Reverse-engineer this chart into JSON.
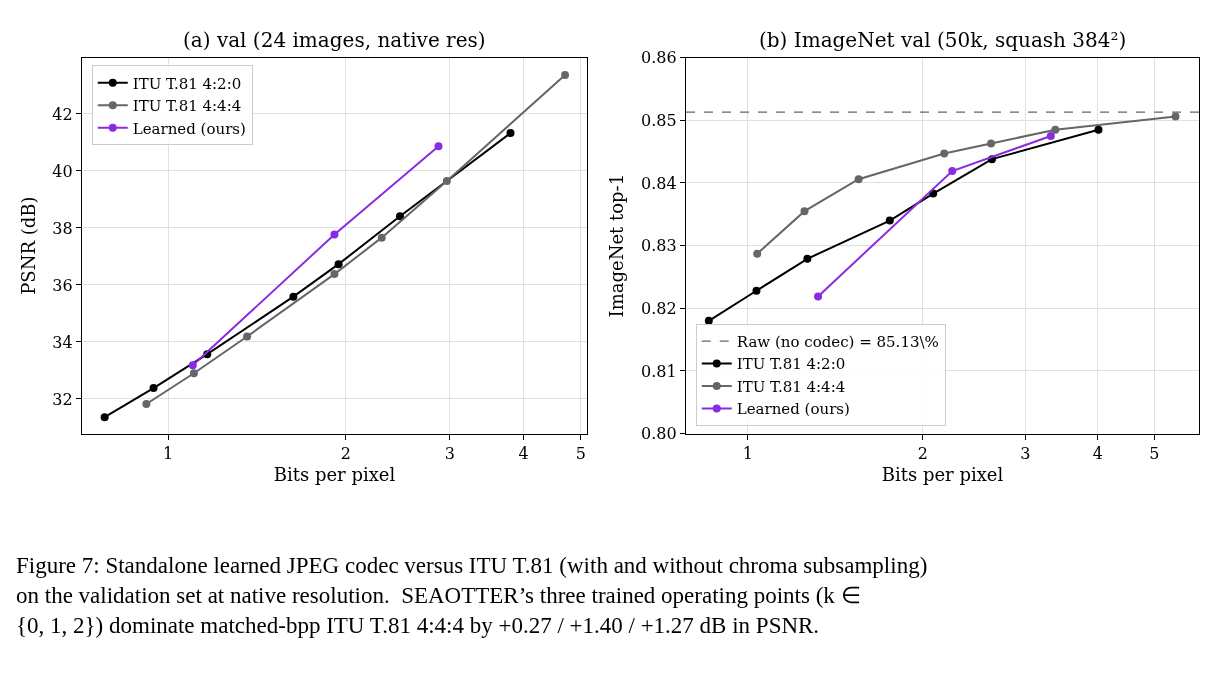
{
  "chart_data": [
    {
      "type": "line",
      "title": "(a) val (24 images, native res)",
      "xlabel": "Bits per pixel",
      "ylabel": "PSNR (dB)",
      "log": "x",
      "xlim": [
        0.715,
        5.12
      ],
      "xticks": [
        1,
        2,
        3,
        4,
        5
      ],
      "ylim": [
        30.78,
        43.98
      ],
      "yticks": [
        32,
        34,
        36,
        38,
        40,
        42
      ],
      "grid": true,
      "legend": "top left",
      "marker": "circle",
      "line_style": "solid",
      "series": [
        {
          "name": "ITU T.81 4:2:0",
          "color": "#000000",
          "x": [
            0.781,
            0.945,
            1.165,
            1.63,
            1.944,
            2.47,
            3.8
          ],
          "values": [
            31.36,
            32.38,
            33.57,
            35.59,
            36.73,
            38.41,
            41.33
          ]
        },
        {
          "name": "ITU T.81 4:4:4",
          "color": "#666666",
          "x": [
            0.919,
            1.106,
            1.361,
            1.913,
            2.3,
            2.965,
            4.7
          ],
          "values": [
            31.82,
            32.9,
            34.19,
            36.38,
            37.66,
            39.65,
            43.37
          ]
        },
        {
          "name": "Learned (ours)",
          "color": "#8a2be2",
          "x": [
            1.101,
            1.913,
            2.87
          ],
          "values": [
            33.18,
            37.77,
            40.87
          ]
        }
      ]
    },
    {
      "type": "line",
      "title": "(b) ImageNet val (50k, squash 384²)",
      "xlabel": "Bits per pixel",
      "ylabel": "ImageNet top-1",
      "log": "x",
      "xlim": [
        0.783,
        5.97
      ],
      "xticks": [
        1,
        2,
        3,
        4,
        5
      ],
      "ylim": [
        0.8,
        0.86
      ],
      "yticks": [
        {
          "value": 0.8,
          "label": "0.80"
        },
        0.81,
        0.82,
        0.83,
        0.84,
        0.85,
        {
          "value": 0.86,
          "label": "0.86"
        }
      ],
      "grid": true,
      "legend": "bottom left",
      "marker": "circle",
      "line_style": "solid",
      "ref_lines": [
        {
          "axis": "y",
          "value": 0.8513,
          "label": "Raw (no codec) = 85.13\\%",
          "color": "#666666",
          "line_style": "dashed"
        }
      ],
      "series": [
        {
          "name": "ITU T.81 4:2:0",
          "color": "#000000",
          "x": [
            0.857,
            1.035,
            1.266,
            1.755,
            2.084,
            2.63,
            4.01
          ],
          "values": [
            0.818,
            0.8228,
            0.8279,
            0.834,
            0.8383,
            0.8438,
            0.8485
          ]
        },
        {
          "name": "ITU T.81 4:4:4",
          "color": "#666666",
          "x": [
            1.038,
            1.252,
            1.551,
            2.177,
            2.62,
            3.38,
            5.44
          ],
          "values": [
            0.8287,
            0.8355,
            0.8406,
            0.8447,
            0.8463,
            0.8485,
            0.8506
          ]
        },
        {
          "name": "Learned (ours)",
          "color": "#8a2be2",
          "x": [
            1.321,
            2.247,
            3.32
          ],
          "values": [
            0.8219,
            0.8419,
            0.8475
          ]
        }
      ],
      "annotations": [
        "Figure 7: Standalone learned JPEG codec versus ITU T.81 (with and without chroma subsampling)\non the validation set at native resolution.  SEAOTTER’s three trained operating points (k ∈\n{0, 1, 2}) dominate matched-bpp ITU T.81 4:4:4 by +0.27 / +1.40 / +1.27 dB in PSNR."
      ]
    }
  ]
}
